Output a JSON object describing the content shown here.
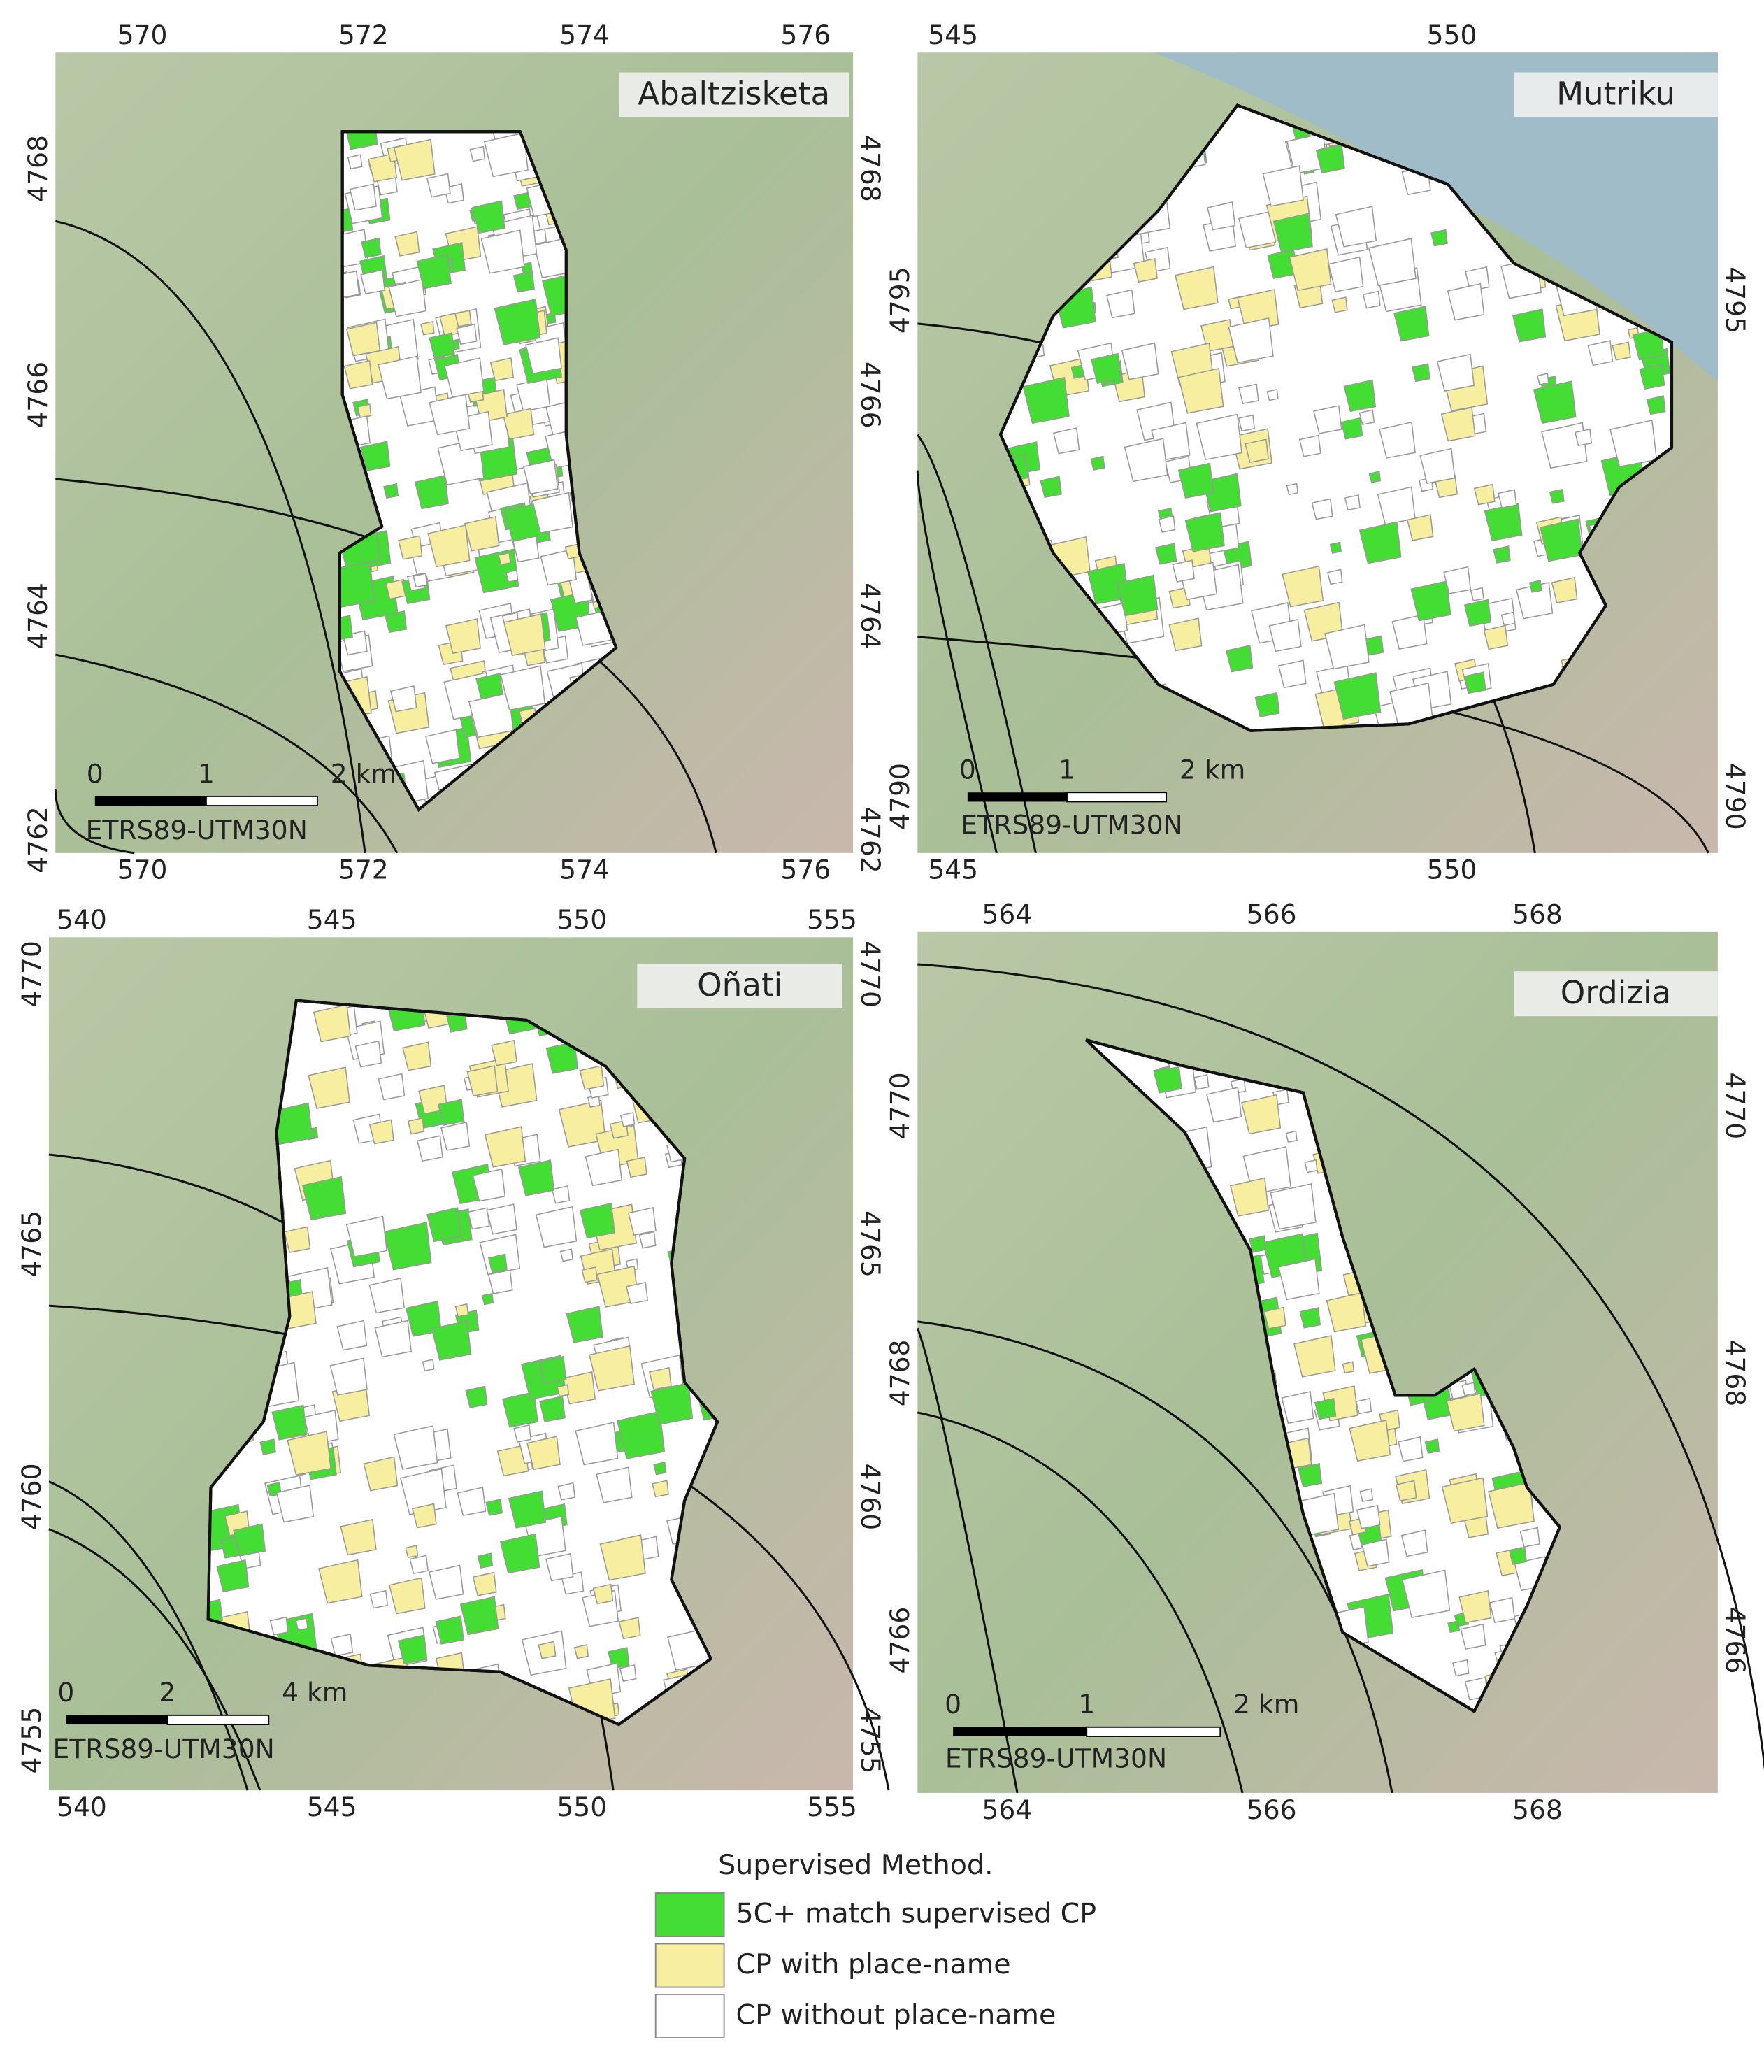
{
  "panels": [
    {
      "title": "Abaltzisketa",
      "x_ticks": [
        570,
        572,
        574,
        576
      ],
      "y_ticks": [
        4768,
        4766,
        4764,
        4762
      ],
      "scale_bar": [
        "0",
        "1",
        "2 km"
      ],
      "crs": "ETRS89-UTM30N"
    },
    {
      "title": "Mutriku",
      "x_ticks": [
        545,
        550
      ],
      "y_ticks": [
        4795,
        4790
      ],
      "scale_bar": [
        "0",
        "1",
        "2 km"
      ],
      "crs": "ETRS89-UTM30N"
    },
    {
      "title": "Oñati",
      "x_ticks": [
        540,
        545,
        550,
        555
      ],
      "y_ticks": [
        4770,
        4765,
        4760,
        4755
      ],
      "scale_bar": [
        "0",
        "2",
        "4 km"
      ],
      "crs": "ETRS89-UTM30N"
    },
    {
      "title": "Ordizia",
      "x_ticks": [
        564,
        566,
        568
      ],
      "y_ticks": [
        4770,
        4768,
        4766
      ],
      "scale_bar": [
        "0",
        "1",
        "2 km"
      ],
      "crs": "ETRS89-UTM30N"
    }
  ],
  "legend": {
    "title": "Supervised Method.",
    "items": [
      {
        "label": "5C+ match supervised CP",
        "color": "#44dd33"
      },
      {
        "label": "CP with place-name",
        "color": "#f8eea0"
      },
      {
        "label": "CP without place-name",
        "color": "#ffffff"
      }
    ]
  }
}
